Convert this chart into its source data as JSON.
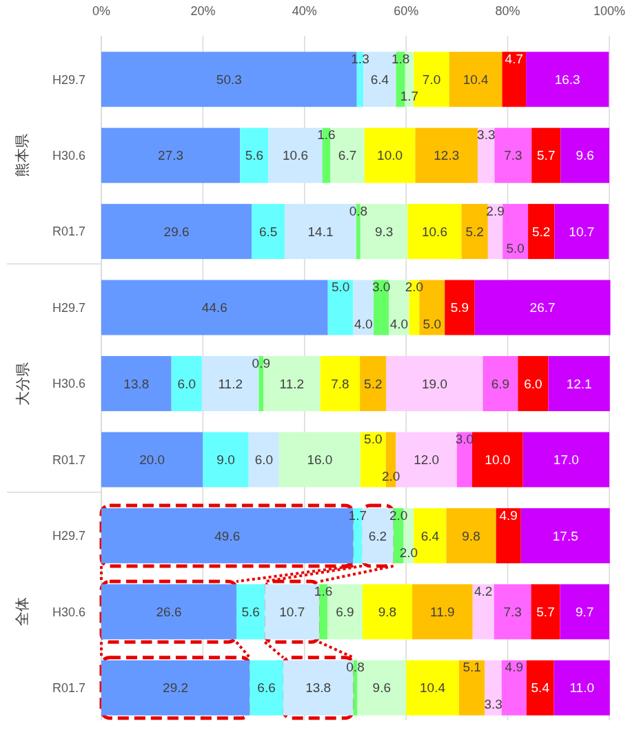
{
  "chart_data": {
    "type": "bar",
    "orientation": "horizontal",
    "stacked": true,
    "grid": "x",
    "categories": [
      "H29.7",
      "H30.6",
      "R01.7",
      "H29.7",
      "H30.6",
      "R01.7",
      "H29.7",
      "H30.6",
      "R01.7"
    ],
    "annotations": [
      "熊本県",
      "大分県",
      "全体"
    ],
    "xlim": [
      0,
      100
    ],
    "xticks": [
      {
        "value": 0,
        "label": "0%"
      },
      {
        "value": 20,
        "label": "20%"
      },
      {
        "value": 40,
        "label": "40%"
      },
      {
        "value": 60,
        "label": "60%"
      },
      {
        "value": 80,
        "label": "80%"
      },
      {
        "value": 100,
        "label": "100%"
      }
    ],
    "series": [
      {
        "color": "#6699ff",
        "values": [
          50.3,
          27.3,
          29.6,
          44.6,
          13.8,
          20.0,
          49.6,
          26.6,
          29.2
        ],
        "value_labels": [
          "50.3",
          "27.3",
          "29.6",
          "44.6",
          "13.8",
          "20.0",
          "49.6",
          "26.6",
          "29.2"
        ]
      },
      {
        "color": "#66ffff",
        "values": [
          1.3,
          5.6,
          6.5,
          5.0,
          6.0,
          9.0,
          1.7,
          5.6,
          6.6
        ],
        "value_labels": [
          "1.3",
          "5.6",
          "6.5",
          "5.0",
          "6.0",
          "9.0",
          "1.7",
          "5.6",
          "6.6"
        ]
      },
      {
        "color": "#cce9ff",
        "values": [
          6.4,
          10.6,
          14.1,
          4.0,
          11.2,
          6.0,
          6.2,
          10.7,
          13.8
        ],
        "value_labels": [
          "6.4",
          "10.6",
          "14.1",
          "4.0",
          "11.2",
          "6.0",
          "6.2",
          "10.7",
          "13.8"
        ]
      },
      {
        "color": "#66ff66",
        "values": [
          1.8,
          1.6,
          0.8,
          3.0,
          0.9,
          null,
          2.0,
          1.6,
          0.8
        ],
        "value_labels": [
          "1.8",
          "1.6",
          "0.8",
          "3.0",
          "0.9",
          null,
          "2.0",
          "1.6",
          "0.8"
        ]
      },
      {
        "color": "#ccffcc",
        "values": [
          1.7,
          6.7,
          9.3,
          4.0,
          11.2,
          16.0,
          2.0,
          6.9,
          9.6
        ],
        "value_labels": [
          "1.7",
          "6.7",
          "9.3",
          "4.0",
          "11.2",
          "16.0",
          "2.0",
          "6.9",
          "9.6"
        ]
      },
      {
        "color": "#ffff00",
        "values": [
          7.0,
          10.0,
          10.6,
          2.0,
          7.8,
          5.0,
          6.4,
          9.8,
          10.4
        ],
        "value_labels": [
          "7.0",
          "10.0",
          "10.6",
          "2.0",
          "7.8",
          "5.0",
          "6.4",
          "9.8",
          "10.4"
        ]
      },
      {
        "color": "#ffc000",
        "values": [
          10.4,
          12.3,
          5.2,
          5.0,
          5.2,
          2.0,
          9.8,
          11.9,
          5.1
        ],
        "value_labels": [
          "10.4",
          "12.3",
          "5.2",
          "5.0",
          "5.2",
          "2.0",
          "9.8",
          "11.9",
          "5.1"
        ]
      },
      {
        "color": "#ffccff",
        "values": [
          null,
          3.3,
          2.9,
          null,
          19.0,
          12.0,
          null,
          4.2,
          3.3
        ],
        "value_labels": [
          null,
          "3.3",
          "2.9",
          null,
          "19.0",
          "12.0",
          null,
          "4.2",
          "3.3"
        ]
      },
      {
        "color": "#ff66ff",
        "values": [
          null,
          7.3,
          5.0,
          null,
          6.9,
          3.0,
          null,
          7.3,
          4.9
        ],
        "value_labels": [
          null,
          "7.3",
          "5.0",
          null,
          "6.9",
          "3.0",
          null,
          "7.3",
          "4.9"
        ]
      },
      {
        "color": "#ff0000",
        "values": [
          4.7,
          5.7,
          5.2,
          5.9,
          6.0,
          10.0,
          4.9,
          5.7,
          5.4
        ],
        "value_labels": [
          "4.7",
          "5.7",
          "5.2",
          "5.9",
          "6.0",
          "10.0",
          "4.9",
          "5.7",
          "5.4"
        ]
      },
      {
        "color": "#cc00ff",
        "values": [
          16.3,
          9.6,
          10.7,
          26.7,
          12.1,
          17.0,
          17.5,
          9.7,
          11.0
        ],
        "value_labels": [
          "16.3",
          "9.6",
          "10.7",
          "26.7",
          "12.1",
          "17.0",
          "17.5",
          "9.7",
          "11.0"
        ]
      }
    ]
  }
}
